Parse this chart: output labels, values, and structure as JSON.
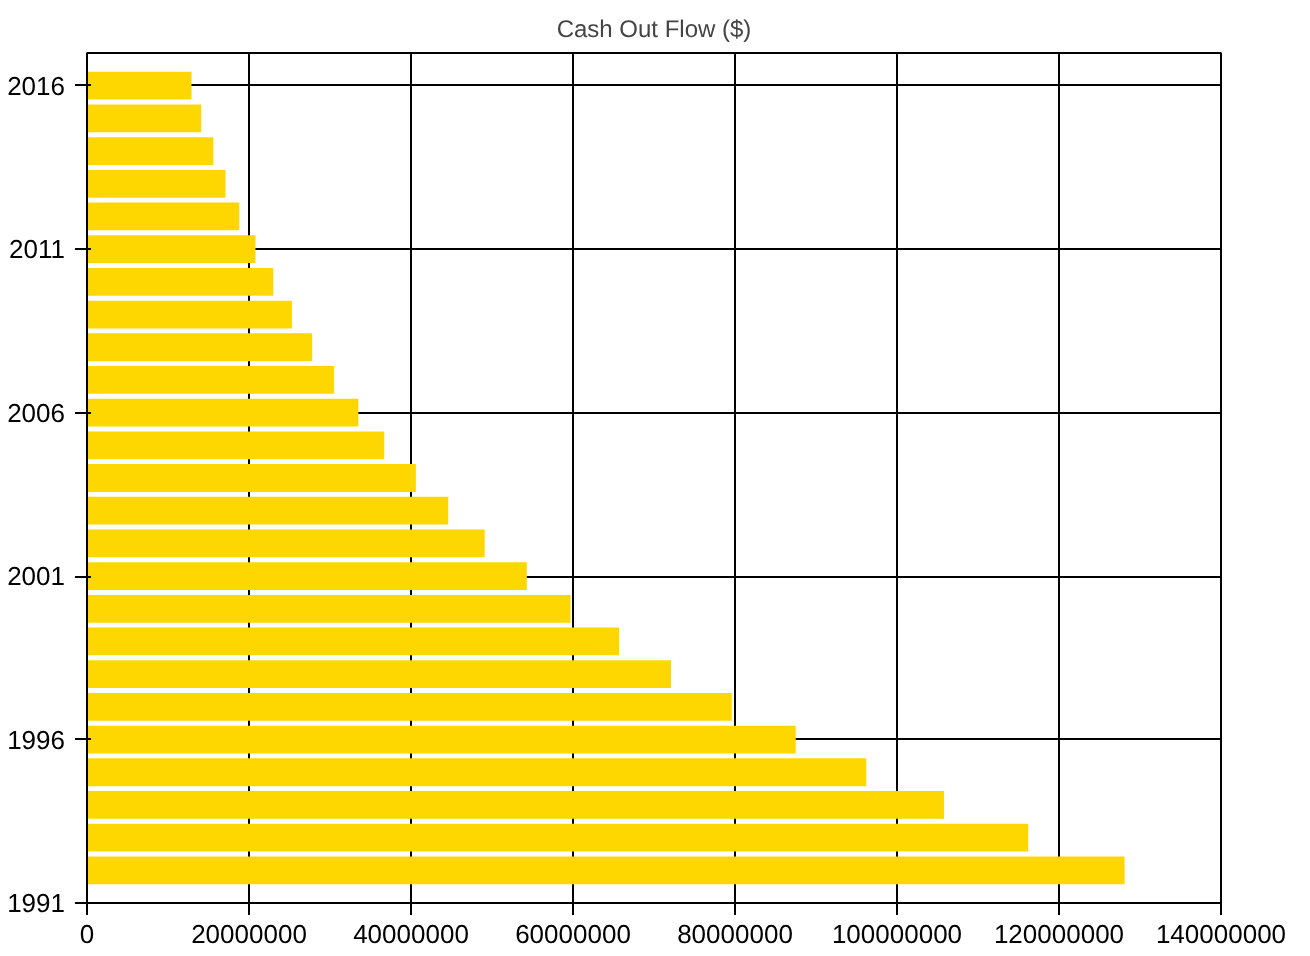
{
  "chart_data": {
    "type": "bar",
    "orientation": "horizontal",
    "title": "Cash Out Flow ($)",
    "x": [
      1992,
      1993,
      1994,
      1995,
      1996,
      1997,
      1998,
      1999,
      2000,
      2001,
      2002,
      2003,
      2004,
      2005,
      2006,
      2007,
      2008,
      2009,
      2010,
      2011,
      2012,
      2013,
      2014,
      2015,
      2016
    ],
    "values": [
      128100000,
      116200000,
      105800000,
      96200000,
      87500000,
      79600000,
      72100000,
      65700000,
      59700000,
      54300000,
      49100000,
      44600000,
      40600000,
      36700000,
      33500000,
      30500000,
      27800000,
      25300000,
      23000000,
      20800000,
      18800000,
      17100000,
      15600000,
      14100000,
      12900000
    ],
    "color": "#ffd700",
    "xlim": [
      0,
      140000000
    ],
    "xticks": [
      0,
      20000000,
      40000000,
      60000000,
      80000000,
      100000000,
      120000000,
      140000000
    ],
    "ylim": [
      1991,
      2017
    ],
    "yticks": [
      1991,
      1996,
      2001,
      2006,
      2011,
      2016
    ],
    "grid": true
  }
}
